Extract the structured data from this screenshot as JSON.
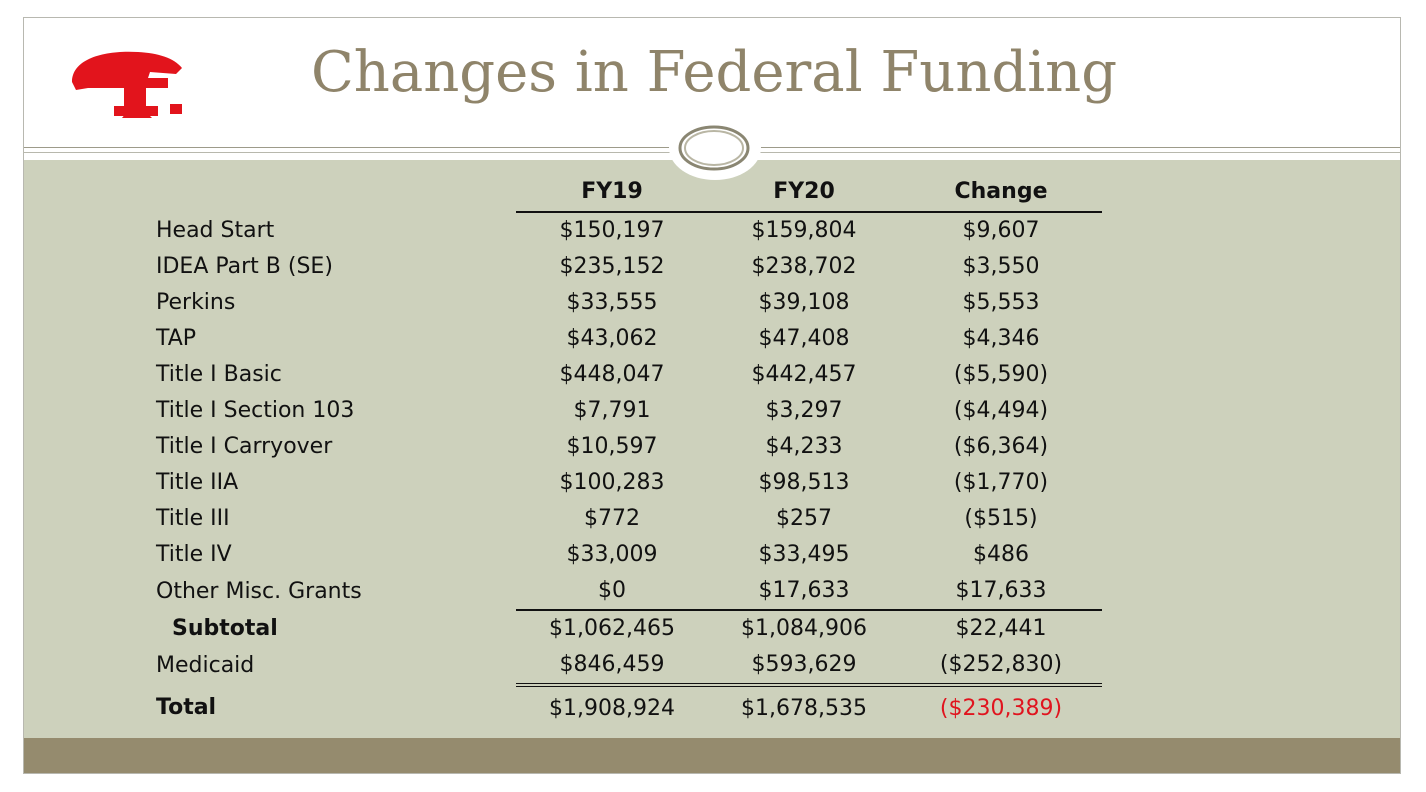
{
  "slide": {
    "title": "Changes in Federal Funding",
    "logo": {
      "icon": "school-logo-f-icon",
      "color": "#e2141c"
    },
    "colors": {
      "content_bg": "#cdd1bc",
      "footer_bg": "#958b6e",
      "title_color": "#8f846a",
      "negative_total": "#e0141e"
    }
  },
  "table": {
    "headers": {
      "label": "",
      "fy19": "FY19",
      "fy20": "FY20",
      "change": "Change"
    },
    "rows": [
      {
        "label": "Head Start",
        "fy19": "$150,197",
        "fy20": "$159,804",
        "change": "$9,607"
      },
      {
        "label": "IDEA Part B (SE)",
        "fy19": "$235,152",
        "fy20": "$238,702",
        "change": "$3,550"
      },
      {
        "label": "Perkins",
        "fy19": "$33,555",
        "fy20": "$39,108",
        "change": "$5,553"
      },
      {
        "label": "TAP",
        "fy19": "$43,062",
        "fy20": "$47,408",
        "change": "$4,346"
      },
      {
        "label": "Title I Basic",
        "fy19": "$448,047",
        "fy20": "$442,457",
        "change": "($5,590)"
      },
      {
        "label": "Title I Section 103",
        "fy19": "$7,791",
        "fy20": "$3,297",
        "change": "($4,494)"
      },
      {
        "label": "Title I Carryover",
        "fy19": "$10,597",
        "fy20": "$4,233",
        "change": "($6,364)"
      },
      {
        "label": "Title IIA",
        "fy19": "$100,283",
        "fy20": "$98,513",
        "change": "($1,770)"
      },
      {
        "label": "Title III",
        "fy19": "$772",
        "fy20": "$257",
        "change": "($515)"
      },
      {
        "label": "Title IV",
        "fy19": "$33,009",
        "fy20": "$33,495",
        "change": "$486"
      },
      {
        "label": "Other Misc. Grants",
        "fy19": "$0",
        "fy20": "$17,633",
        "change": "$17,633"
      }
    ],
    "subtotal": {
      "label": "Subtotal",
      "fy19": "$1,062,465",
      "fy20": "$1,084,906",
      "change": "$22,441"
    },
    "medicaid": {
      "label": "Medicaid",
      "fy19": "$846,459",
      "fy20": "$593,629",
      "change": "($252,830)"
    },
    "total": {
      "label": "Total",
      "fy19": "$1,908,924",
      "fy20": "$1,678,535",
      "change": "($230,389)"
    }
  }
}
